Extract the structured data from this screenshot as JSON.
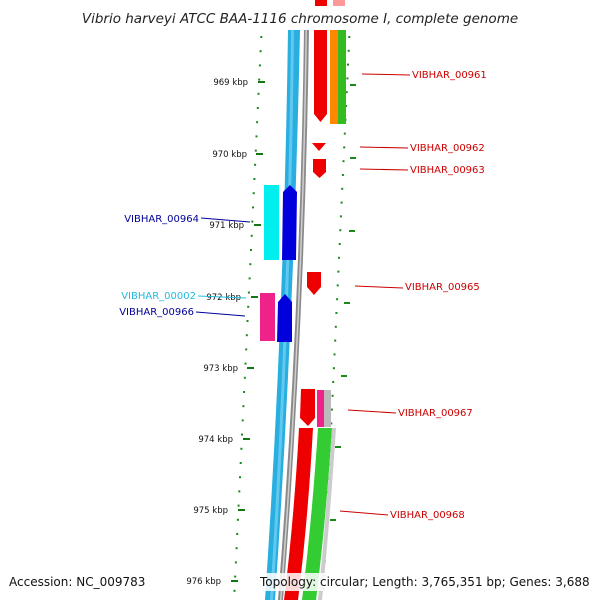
{
  "title": "Vibrio harveyi ATCC BAA-1116 chromosome I, complete genome",
  "footer": {
    "accession": "Accession: NC_009783",
    "topology": "Topology: circular; Length: 3,765,351 bp; Genes: 3,688"
  },
  "ticks": [
    "969 kbp",
    "970 kbp",
    "971 kbp",
    "972 kbp",
    "973 kbp",
    "974 kbp",
    "975 kbp",
    "976 kbp"
  ],
  "colors": {
    "forward_gene": "#ee0000",
    "reverse_gene": "#0000dd",
    "trna": "#ee2288",
    "gc_dots": "#1a8a1a",
    "backbone_outer": "#29aee0",
    "backbone_inner": "#888888",
    "label_red": "#cc0000",
    "label_blue": "#000099",
    "label_cyan": "#22bbdd"
  },
  "genes": [
    {
      "label": "VIBHAR_00961",
      "color": "label_red"
    },
    {
      "label": "VIBHAR_00962",
      "color": "label_red"
    },
    {
      "label": "VIBHAR_00963",
      "color": "label_red"
    },
    {
      "label": "VIBHAR_00964",
      "color": "label_blue"
    },
    {
      "label": "VIBHAR_00965",
      "color": "label_red"
    },
    {
      "label": "VIBHAR_00002",
      "color": "label_cyan"
    },
    {
      "label": "VIBHAR_00966",
      "color": "label_blue"
    },
    {
      "label": "VIBHAR_00967",
      "color": "label_red"
    },
    {
      "label": "VIBHAR_00968",
      "color": "label_red"
    }
  ]
}
